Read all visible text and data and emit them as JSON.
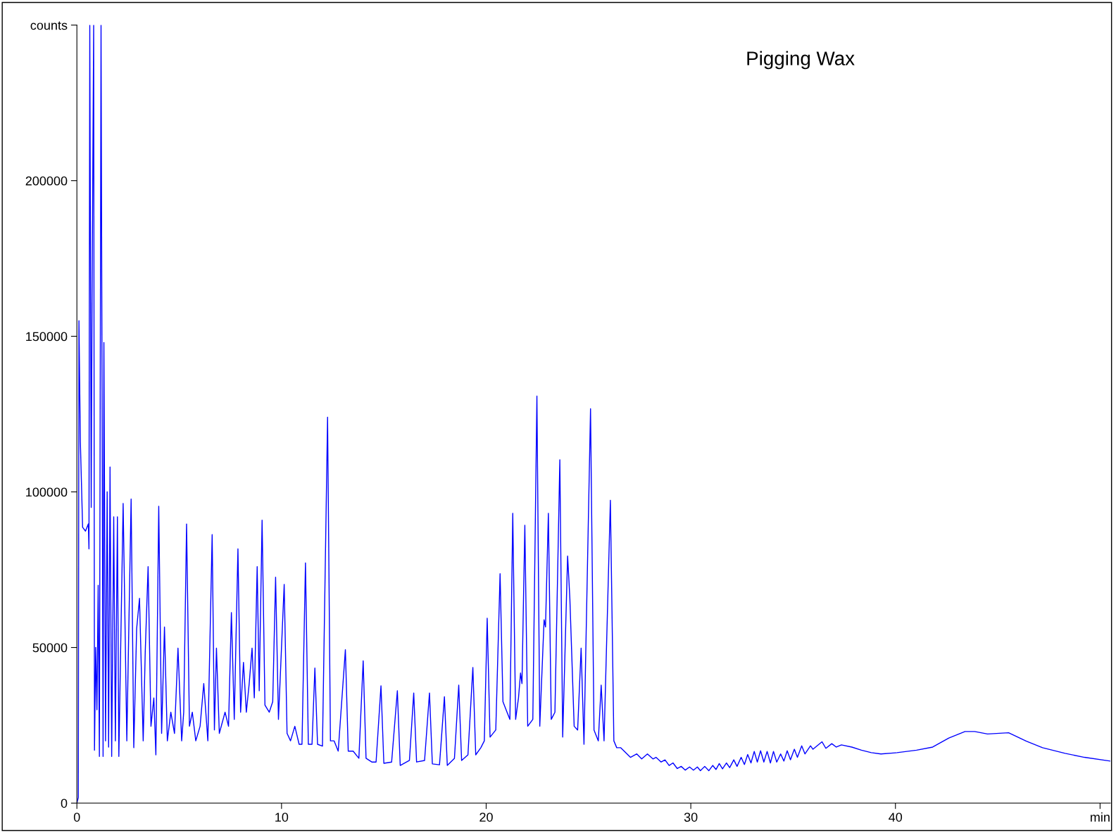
{
  "chart_data": {
    "type": "line",
    "title": "Pigging Wax",
    "xlim": [
      0,
      50.5
    ],
    "ylim": [
      0,
      250000
    ],
    "xticks": [
      0,
      10,
      20,
      30,
      40,
      {
        "value": 50,
        "label": "min"
      }
    ],
    "yticks": [
      0,
      50000,
      100000,
      150000,
      200000,
      {
        "value": 250000,
        "label": "counts"
      }
    ],
    "grid": false,
    "legend": false,
    "marker": "none",
    "line_style": "solid",
    "series": [
      {
        "color": "#0000ff",
        "x": [
          0,
          0.07,
          0.1,
          0.17,
          0.28,
          0.42,
          0.56,
          0.59,
          0.63,
          0.7,
          0.74,
          0.78,
          0.82,
          0.86,
          0.92,
          0.98,
          1.04,
          1.1,
          1.18,
          1.28,
          1.32,
          1.4,
          1.48,
          1.55,
          1.62,
          1.7,
          1.8,
          1.88,
          1.98,
          2.05,
          2.26,
          2.44,
          2.65,
          2.78,
          2.92,
          3.06,
          3.24,
          3.34,
          3.48,
          3.62,
          3.76,
          3.86,
          4.0,
          4.14,
          4.28,
          4.42,
          4.59,
          4.77,
          4.94,
          5.12,
          5.22,
          5.36,
          5.5,
          5.64,
          5.81,
          6.02,
          6.2,
          6.4,
          6.61,
          6.72,
          6.82,
          6.96,
          7.24,
          7.41,
          7.55,
          7.69,
          7.87,
          8.0,
          8.14,
          8.28,
          8.42,
          8.56,
          8.67,
          8.81,
          8.91,
          9.05,
          9.19,
          9.4,
          9.57,
          9.71,
          9.85,
          10.13,
          10.27,
          10.44,
          10.65,
          10.86,
          11.0,
          11.17,
          11.31,
          11.49,
          11.63,
          11.76,
          12.0,
          12.25,
          12.39,
          12.57,
          12.77,
          13.12,
          13.26,
          13.5,
          13.78,
          13.99,
          14.13,
          14.41,
          14.62,
          14.86,
          15.0,
          15.38,
          15.66,
          15.8,
          16.25,
          16.46,
          16.6,
          16.99,
          17.23,
          17.37,
          17.72,
          17.96,
          18.1,
          18.45,
          18.66,
          18.8,
          19.11,
          19.35,
          19.49,
          19.74,
          19.91,
          20.05,
          20.19,
          20.47,
          20.68,
          20.82,
          21.02,
          21.16,
          21.3,
          21.44,
          21.58,
          21.68,
          21.75,
          21.89,
          22.03,
          22.28,
          22.48,
          22.62,
          22.83,
          22.9,
          23.04,
          23.18,
          23.36,
          23.6,
          23.74,
          23.98,
          24.09,
          24.3,
          24.47,
          24.64,
          24.78,
          25.1,
          25.27,
          25.48,
          25.62,
          25.76,
          26.07,
          26.24,
          26.38,
          26.57,
          27.05,
          27.36,
          27.6,
          27.88,
          28.15,
          28.3,
          28.55,
          28.74,
          28.94,
          29.13,
          29.34,
          29.53,
          29.73,
          29.94,
          30.13,
          30.32,
          30.47,
          30.68,
          30.88,
          31.07,
          31.23,
          31.39,
          31.55,
          31.74,
          31.9,
          32.1,
          32.26,
          32.46,
          32.62,
          32.78,
          32.94,
          33.1,
          33.25,
          33.41,
          33.57,
          33.73,
          33.89,
          34.04,
          34.2,
          34.39,
          34.55,
          34.71,
          34.87,
          35.06,
          35.21,
          35.42,
          35.58,
          35.85,
          35.97,
          36.41,
          36.6,
          36.89,
          37.11,
          37.36,
          37.87,
          38.34,
          38.82,
          39.29,
          40.08,
          41.03,
          41.82,
          42.61,
          43.4,
          43.87,
          44.5,
          45.53,
          46.4,
          47.19,
          48.29,
          49.24,
          50.5
        ],
        "values": [
          0,
          1800,
          155000,
          116000,
          88600,
          87400,
          89700,
          81700,
          250000,
          95000,
          160000,
          207000,
          250000,
          17000,
          50000,
          30000,
          70000,
          15000,
          250000,
          15000,
          148000,
          20000,
          100000,
          18000,
          108000,
          15000,
          92000,
          20000,
          92000,
          15000,
          96300,
          20000,
          97700,
          17800,
          56000,
          65800,
          20000,
          48600,
          76000,
          24700,
          33800,
          15500,
          95400,
          22400,
          56600,
          20000,
          29200,
          22400,
          49800,
          20000,
          29200,
          89700,
          24700,
          29200,
          20000,
          24700,
          38400,
          20000,
          86300,
          23500,
          49800,
          22400,
          29200,
          24700,
          61200,
          26900,
          81700,
          29200,
          45200,
          29200,
          38400,
          49800,
          33800,
          76000,
          36100,
          90900,
          31500,
          29200,
          32600,
          72600,
          26900,
          70300,
          22400,
          20000,
          24700,
          18900,
          18900,
          77200,
          18900,
          18900,
          43400,
          18900,
          18300,
          124000,
          20000,
          20000,
          16700,
          49300,
          16700,
          16700,
          14400,
          45700,
          14400,
          13200,
          13200,
          37700,
          12800,
          13200,
          36100,
          12100,
          13700,
          35400,
          13200,
          13700,
          35400,
          12600,
          12300,
          34200,
          12100,
          14400,
          37900,
          13700,
          15500,
          43600,
          15500,
          17800,
          20000,
          59400,
          21200,
          23500,
          73700,
          32600,
          29200,
          26900,
          93100,
          26900,
          33800,
          41800,
          38400,
          89300,
          24700,
          26900,
          130800,
          24700,
          58900,
          56600,
          93100,
          26900,
          29200,
          110300,
          21200,
          79400,
          65800,
          24700,
          23500,
          49800,
          18900,
          126700,
          23500,
          20000,
          37900,
          20000,
          97300,
          20000,
          17800,
          17800,
          14700,
          15800,
          14200,
          15800,
          14200,
          14700,
          13200,
          13900,
          12100,
          12900,
          11100,
          11800,
          10600,
          11600,
          10600,
          11600,
          10400,
          11800,
          10400,
          12100,
          10800,
          12700,
          11000,
          12900,
          11400,
          13900,
          11800,
          14700,
          12400,
          15600,
          12900,
          16600,
          13200,
          16800,
          13200,
          16600,
          12900,
          16600,
          13200,
          15800,
          13500,
          16800,
          13900,
          17300,
          14700,
          18400,
          15800,
          18400,
          17300,
          19700,
          17600,
          19100,
          18000,
          18700,
          18000,
          17000,
          16200,
          15800,
          16200,
          17000,
          18000,
          20900,
          23000,
          23000,
          22200,
          22600,
          19900,
          17800,
          16000,
          14700,
          13500
        ]
      }
    ]
  }
}
